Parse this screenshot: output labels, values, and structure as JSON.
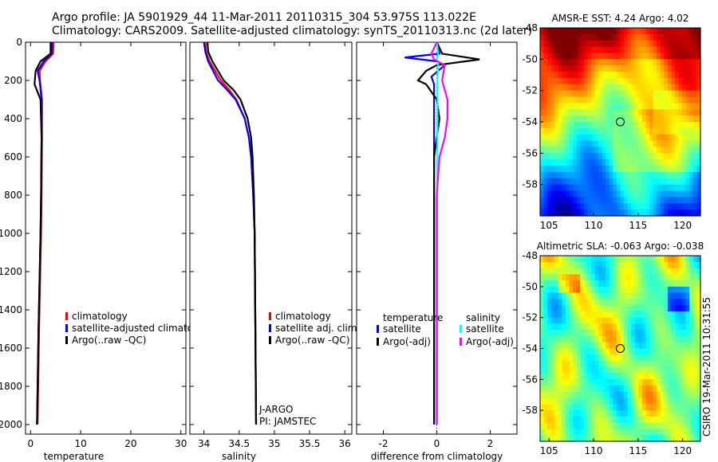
{
  "title": {
    "line1": "Argo profile: JA 5901929_44 11-Mar-2011 20110315_304 53.975S 113.022E",
    "line2": "Climatology: CARS2009. Satellite-adjusted climatology: synTS_20110313.nc (2d later)"
  },
  "side_stamp": "CSIRO 19-Mar-2011 10:31:55",
  "colors": {
    "red": "#ff0000",
    "blue": "#0000ff",
    "black": "#000000",
    "cyan": "#00ffff",
    "magenta": "#ff00ff"
  },
  "chart_data": [
    {
      "id": "temperature",
      "type": "line",
      "xlabel": "temperature",
      "xlim": [
        -1,
        31
      ],
      "ylim": [
        0,
        2050
      ],
      "xticks": [
        0,
        10,
        20,
        30
      ],
      "yticks": [
        0,
        200,
        400,
        600,
        800,
        1000,
        1200,
        1400,
        1600,
        1800,
        2000
      ],
      "legend_position": "lower-right",
      "series": [
        {
          "name": "climatology",
          "color": "#ff0000",
          "depth": [
            0,
            60,
            100,
            150,
            200,
            300,
            500,
            800,
            1000,
            1500,
            2000
          ],
          "values": [
            4.6,
            4.5,
            3.0,
            1.8,
            1.9,
            2.3,
            2.3,
            2.2,
            2.1,
            1.7,
            1.4
          ]
        },
        {
          "name": "satellite-adjusted climatology",
          "color": "#0000ff",
          "depth": [
            0,
            60,
            100,
            150,
            200,
            300,
            500,
            800,
            1000,
            1500,
            2000
          ],
          "values": [
            4.3,
            4.2,
            2.6,
            1.4,
            1.8,
            2.2,
            2.2,
            2.1,
            2.0,
            1.6,
            1.3
          ]
        },
        {
          "name": "Argo(..raw -QC)",
          "color": "#000000",
          "depth": [
            0,
            60,
            100,
            150,
            220,
            300,
            500,
            800,
            1000,
            1500,
            2000
          ],
          "values": [
            4.0,
            4.0,
            2.0,
            1.0,
            0.8,
            2.0,
            2.2,
            2.1,
            2.0,
            1.6,
            1.3
          ]
        }
      ]
    },
    {
      "id": "salinity",
      "type": "line",
      "xlabel": "salinity",
      "xlim": [
        33.8,
        36.1
      ],
      "ylim": [
        0,
        2050
      ],
      "xticks": [
        34,
        34.5,
        35,
        35.5,
        36
      ],
      "yticks": [
        0,
        200,
        400,
        600,
        800,
        1000,
        1200,
        1400,
        1600,
        1800,
        2000
      ],
      "legend_position": "lower-right",
      "annotations": [
        "J-ARGO",
        "PI: JAMSTEC"
      ],
      "series": [
        {
          "name": "climatology",
          "color": "#ff0000",
          "depth": [
            0,
            50,
            100,
            200,
            250,
            300,
            400,
            500,
            600,
            800,
            1000,
            1500,
            2000
          ],
          "values": [
            34.02,
            34.03,
            34.08,
            34.24,
            34.36,
            34.46,
            34.58,
            34.64,
            34.67,
            34.7,
            34.72,
            34.73,
            34.74
          ]
        },
        {
          "name": "satellite adj. clim.",
          "color": "#0000ff",
          "depth": [
            0,
            50,
            100,
            200,
            250,
            300,
            400,
            500,
            600,
            800,
            1000,
            1500,
            2000
          ],
          "values": [
            34.0,
            34.02,
            34.06,
            34.2,
            34.33,
            34.45,
            34.58,
            34.64,
            34.67,
            34.7,
            34.72,
            34.73,
            34.74
          ]
        },
        {
          "name": "Argo(..raw -QC)",
          "color": "#000000",
          "depth": [
            0,
            50,
            100,
            200,
            250,
            300,
            400,
            500,
            600,
            800,
            1000,
            1500,
            2000
          ],
          "values": [
            34.05,
            34.06,
            34.12,
            34.28,
            34.42,
            34.52,
            34.62,
            34.67,
            34.69,
            34.71,
            34.72,
            34.73,
            34.74
          ]
        }
      ]
    },
    {
      "id": "difference",
      "type": "line",
      "xlabel": "difference from climatology",
      "xlim": [
        -3,
        3
      ],
      "ylim": [
        0,
        2050
      ],
      "xticks": [
        -2,
        0,
        2
      ],
      "yticks": [
        0,
        200,
        400,
        600,
        800,
        1000,
        1200,
        1400,
        1600,
        1800,
        2000
      ],
      "legend_position": "lower-center",
      "legend_headers": [
        "temperature",
        "salinity"
      ],
      "series": [
        {
          "name": "satellite",
          "group": "temperature",
          "color": "#0000ff",
          "depth": [
            0,
            60,
            80,
            100,
            120,
            180,
            220,
            300,
            400,
            600,
            1000,
            2000
          ],
          "values": [
            0.0,
            0.1,
            -1.2,
            0.0,
            0.3,
            -0.2,
            -0.1,
            -0.1,
            -0.1,
            -0.1,
            -0.1,
            -0.1
          ]
        },
        {
          "name": "Argo(-adj)",
          "group": "temperature",
          "color": "#000000",
          "depth": [
            0,
            60,
            90,
            120,
            150,
            200,
            220,
            300,
            400,
            500,
            600,
            1000,
            2000
          ],
          "values": [
            0.0,
            0.2,
            1.6,
            0.0,
            -0.4,
            -0.7,
            -0.4,
            0.0,
            0.1,
            0.0,
            -0.1,
            -0.1,
            -0.1
          ]
        },
        {
          "name": "satellite",
          "group": "salinity",
          "color": "#00ffff",
          "depth": [
            0,
            60,
            90,
            120,
            200,
            300,
            500,
            1000,
            2000
          ],
          "values": [
            0.0,
            0.05,
            0.0,
            0.05,
            0.02,
            0.03,
            0.02,
            0.02,
            0.02
          ]
        },
        {
          "name": "Argo(-adj)",
          "group": "salinity",
          "color": "#ff00ff",
          "depth": [
            0,
            60,
            90,
            120,
            200,
            300,
            400,
            500,
            600,
            800,
            1000,
            2000
          ],
          "values": [
            0.0,
            -0.2,
            -0.1,
            0.3,
            0.2,
            0.4,
            0.4,
            0.3,
            0.1,
            0.0,
            0.0,
            0.0
          ]
        }
      ]
    },
    {
      "id": "sst-map",
      "type": "heatmap",
      "title": "AMSR-E SST: 4.24 Argo: 4.02",
      "xlim": [
        104,
        122
      ],
      "ylim": [
        -60,
        -48
      ],
      "xticks": [
        105,
        110,
        115,
        120
      ],
      "yticks": [
        -48,
        -50,
        -52,
        -54,
        -56,
        -58
      ],
      "marker": {
        "lon": 113.0,
        "lat": -54.0
      }
    },
    {
      "id": "sla-map",
      "type": "heatmap",
      "title": "Altimetric SLA: -0.063 Argo: -0.038",
      "xlim": [
        104,
        122
      ],
      "ylim": [
        -60,
        -48
      ],
      "xticks": [
        105,
        110,
        115,
        120
      ],
      "yticks": [
        -48,
        -50,
        -52,
        -54,
        -56,
        -58
      ],
      "marker": {
        "lon": 113.0,
        "lat": -54.0
      }
    }
  ]
}
